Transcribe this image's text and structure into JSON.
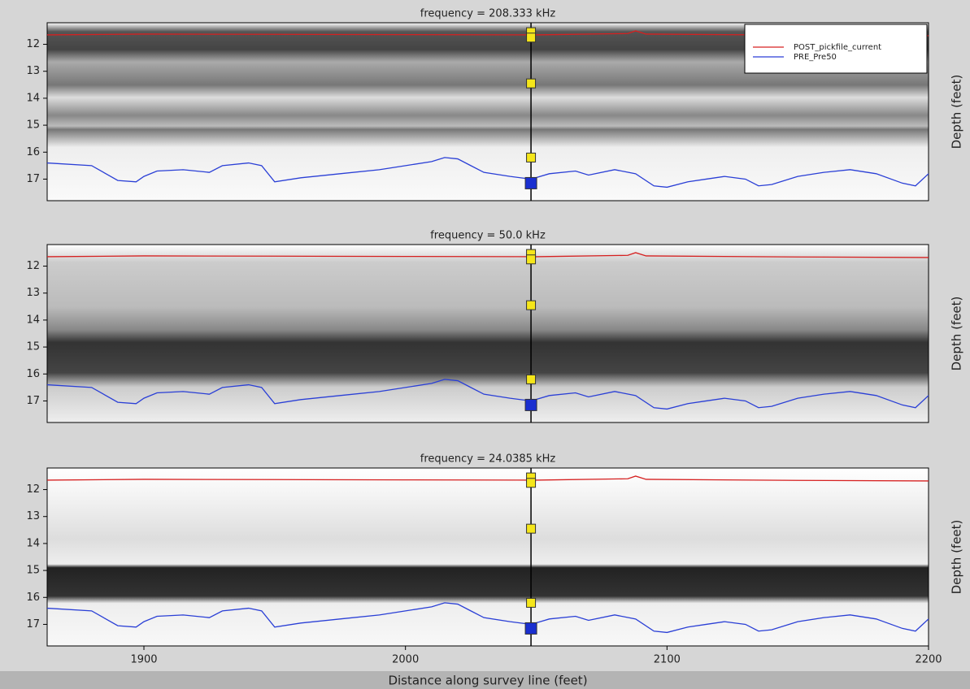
{
  "chart_data": [
    {
      "type": "line",
      "title": "frequency = 208.333 kHz",
      "ylabel": "Depth (feet)",
      "xlim": [
        1863,
        2200
      ],
      "ylim": [
        17.8,
        11.2
      ],
      "yticks": [
        12,
        13,
        14,
        15,
        16,
        17
      ],
      "legend": "upper right",
      "x": [
        1863,
        1880,
        1890,
        1897,
        1900,
        1905,
        1915,
        1925,
        1930,
        1940,
        1945,
        1950,
        1960,
        1975,
        1990,
        2000,
        2010,
        2015,
        2020,
        2025,
        2030,
        2040,
        2048,
        2055,
        2065,
        2070,
        2080,
        2088,
        2095,
        2100,
        2108,
        2115,
        2122,
        2130,
        2135,
        2140,
        2150,
        2160,
        2170,
        2180,
        2190,
        2195,
        2200
      ],
      "series": [
        {
          "name": "POST_pickfile_current",
          "color": "#d62020",
          "x": [
            1863,
            1900,
            1950,
            2000,
            2050,
            2085,
            2088,
            2092,
            2150,
            2200
          ],
          "values": [
            11.65,
            11.62,
            11.63,
            11.64,
            11.65,
            11.6,
            11.5,
            11.62,
            11.66,
            11.68
          ]
        },
        {
          "name": "PRE_Pre50",
          "color": "#2a3fd6",
          "values": [
            16.4,
            16.5,
            17.05,
            17.1,
            16.9,
            16.7,
            16.65,
            16.75,
            16.5,
            16.4,
            16.5,
            17.1,
            16.95,
            16.8,
            16.65,
            16.5,
            16.35,
            16.2,
            16.25,
            16.5,
            16.75,
            16.9,
            17.0,
            16.8,
            16.7,
            16.85,
            16.65,
            16.8,
            17.25,
            17.3,
            17.1,
            17.0,
            16.9,
            17.0,
            17.25,
            17.2,
            16.9,
            16.75,
            16.65,
            16.8,
            17.15,
            17.25,
            16.8
          ]
        }
      ],
      "markers": {
        "x": [
          2048,
          2048,
          2048,
          2048,
          2048
        ],
        "values": [
          11.55,
          11.75,
          13.45,
          16.2,
          17.15
        ],
        "colors": [
          "#f5e61a",
          "#f5e61a",
          "#f5e61a",
          "#f5e61a",
          "#1a2fd0"
        ]
      }
    },
    {
      "type": "line",
      "title": "frequency = 50.0 kHz",
      "xlim": [
        1863,
        2200
      ],
      "ylim": [
        17.8,
        11.2
      ],
      "yticks": [
        12,
        13,
        14,
        15,
        16,
        17
      ],
      "x": [
        1863,
        1880,
        1890,
        1897,
        1900,
        1905,
        1915,
        1925,
        1930,
        1940,
        1945,
        1950,
        1960,
        1975,
        1990,
        2000,
        2010,
        2015,
        2020,
        2025,
        2030,
        2040,
        2048,
        2055,
        2065,
        2070,
        2080,
        2088,
        2095,
        2100,
        2108,
        2115,
        2122,
        2130,
        2135,
        2140,
        2150,
        2160,
        2170,
        2180,
        2190,
        2195,
        2200
      ],
      "series": [
        {
          "color": "#d62020",
          "x": [
            1863,
            1900,
            1950,
            2000,
            2050,
            2085,
            2088,
            2092,
            2150,
            2200
          ],
          "values": [
            11.65,
            11.62,
            11.63,
            11.64,
            11.65,
            11.6,
            11.5,
            11.62,
            11.66,
            11.68
          ]
        },
        {
          "color": "#2a3fd6",
          "values": [
            16.4,
            16.5,
            17.05,
            17.1,
            16.9,
            16.7,
            16.65,
            16.75,
            16.5,
            16.4,
            16.5,
            17.1,
            16.95,
            16.8,
            16.65,
            16.5,
            16.35,
            16.2,
            16.25,
            16.5,
            16.75,
            16.9,
            17.0,
            16.8,
            16.7,
            16.85,
            16.65,
            16.8,
            17.25,
            17.3,
            17.1,
            17.0,
            16.9,
            17.0,
            17.25,
            17.2,
            16.9,
            16.75,
            16.65,
            16.8,
            17.15,
            17.25,
            16.8
          ]
        }
      ],
      "markers": {
        "x": [
          2048,
          2048,
          2048,
          2048,
          2048
        ],
        "values": [
          11.55,
          11.75,
          13.45,
          16.2,
          17.15
        ],
        "colors": [
          "#f5e61a",
          "#f5e61a",
          "#f5e61a",
          "#f5e61a",
          "#1a2fd0"
        ]
      }
    },
    {
      "type": "line",
      "title": "frequency = 24.0385 kHz",
      "xlabel": "Distance along survey line (feet)",
      "xlim": [
        1863,
        2200
      ],
      "xticks": [
        1900,
        2000,
        2100,
        2200
      ],
      "ylim": [
        17.8,
        11.2
      ],
      "yticks": [
        12,
        13,
        14,
        15,
        16,
        17
      ],
      "x": [
        1863,
        1880,
        1890,
        1897,
        1900,
        1905,
        1915,
        1925,
        1930,
        1940,
        1945,
        1950,
        1960,
        1975,
        1990,
        2000,
        2010,
        2015,
        2020,
        2025,
        2030,
        2040,
        2048,
        2055,
        2065,
        2070,
        2080,
        2088,
        2095,
        2100,
        2108,
        2115,
        2122,
        2130,
        2135,
        2140,
        2150,
        2160,
        2170,
        2180,
        2190,
        2195,
        2200
      ],
      "series": [
        {
          "color": "#d62020",
          "x": [
            1863,
            1900,
            1950,
            2000,
            2050,
            2085,
            2088,
            2092,
            2150,
            2200
          ],
          "values": [
            11.65,
            11.62,
            11.63,
            11.64,
            11.65,
            11.6,
            11.5,
            11.62,
            11.66,
            11.68
          ]
        },
        {
          "color": "#2a3fd6",
          "values": [
            16.4,
            16.5,
            17.05,
            17.1,
            16.9,
            16.7,
            16.65,
            16.75,
            16.5,
            16.4,
            16.5,
            17.1,
            16.95,
            16.8,
            16.65,
            16.5,
            16.35,
            16.2,
            16.25,
            16.5,
            16.75,
            16.9,
            17.0,
            16.8,
            16.7,
            16.85,
            16.65,
            16.8,
            17.25,
            17.3,
            17.1,
            17.0,
            16.9,
            17.0,
            17.25,
            17.2,
            16.9,
            16.75,
            16.65,
            16.8,
            17.15,
            17.25,
            16.8
          ]
        }
      ],
      "markers": {
        "x": [
          2048,
          2048,
          2048,
          2048,
          2048
        ],
        "values": [
          11.55,
          11.75,
          13.45,
          16.2,
          17.15
        ],
        "colors": [
          "#f5e61a",
          "#f5e61a",
          "#f5e61a",
          "#f5e61a",
          "#1a2fd0"
        ]
      }
    }
  ]
}
